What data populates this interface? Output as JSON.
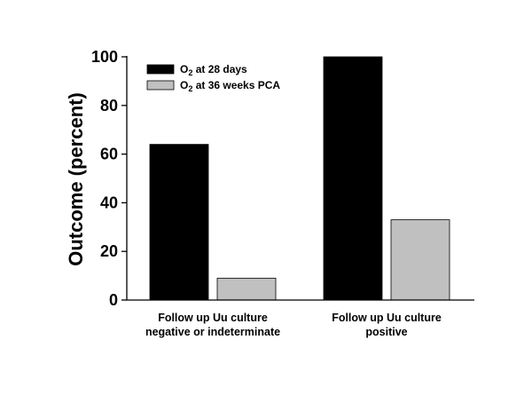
{
  "chart_data": {
    "type": "bar",
    "title": "",
    "xlabel": "",
    "ylabel": "Outcome (percent)",
    "ylim": [
      0,
      100
    ],
    "yticks": [
      0,
      20,
      40,
      60,
      80,
      100
    ],
    "categories": [
      [
        "Follow up Uu culture",
        "negative or indeterminate"
      ],
      [
        "Follow up Uu culture",
        "positive"
      ]
    ],
    "series": [
      {
        "name": "O2 at 28 days",
        "name_main": "O",
        "name_sub": "2",
        "name_rest": " at 28 days",
        "color": "#000000",
        "values": [
          64,
          100
        ]
      },
      {
        "name": "O2 at 36 weeks PCA",
        "name_main": "O",
        "name_sub": "2",
        "name_rest": " at 36 weeks PCA",
        "color": "#c0c0c0",
        "values": [
          9,
          33
        ]
      }
    ],
    "grid": false,
    "legend_position": "top-left"
  }
}
